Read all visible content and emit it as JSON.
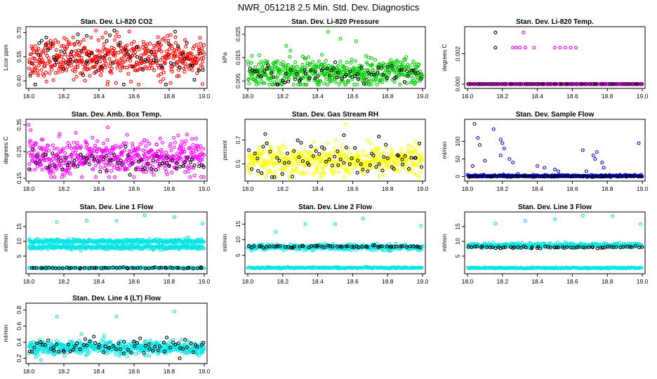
{
  "figure_title": "NWR_051218  2.5 Min. Std. Dev. Diagnostics",
  "chart_data": [
    {
      "type": "scatter",
      "title": "Stan. Dev. Li-820 CO2",
      "ylabel": "Licor ppm",
      "xlim": [
        18.0,
        19.0
      ],
      "ylim": [
        0.37,
        0.72
      ],
      "xticks": [
        "18.0",
        "18.2",
        "18.4",
        "18.6",
        "18.8",
        "19.0"
      ],
      "xtick_values": [
        18.0,
        18.2,
        18.4,
        18.6,
        18.8,
        19.0
      ],
      "yticks": [
        "0.40",
        "0.55",
        "0.70"
      ],
      "ytick_values": [
        0.4,
        0.55,
        0.7
      ],
      "series": [
        {
          "name": "all",
          "color": "#ff0000",
          "center": 0.54,
          "spread": 0.06,
          "n": 520
        },
        {
          "name": "hourly",
          "color": "#000000",
          "center": 0.54,
          "spread": 0.07,
          "n": 70
        }
      ],
      "outliers": [
        {
          "x": 18.1,
          "y": 0.67,
          "color": "#000000"
        },
        {
          "x": 18.28,
          "y": 0.69,
          "color": "#000000"
        },
        {
          "x": 18.33,
          "y": 0.68,
          "color": "#000000"
        },
        {
          "x": 18.42,
          "y": 0.67,
          "color": "#ff0000"
        },
        {
          "x": 18.99,
          "y": 0.38,
          "color": "#ff0000"
        }
      ]
    },
    {
      "type": "scatter",
      "title": "Stan. Dev. Li-820 Pressure",
      "ylabel": "kPa",
      "xlim": [
        18.0,
        19.0
      ],
      "ylim": [
        0.003,
        0.027
      ],
      "xticks": [
        "18.0",
        "18.2",
        "18.4",
        "18.6",
        "18.8",
        "19.0"
      ],
      "xtick_values": [
        18.0,
        18.2,
        18.4,
        18.6,
        18.8,
        19.0
      ],
      "yticks": [
        "0.005",
        "0.015",
        "0.025"
      ],
      "ytick_values": [
        0.005,
        0.015,
        0.025
      ],
      "series": [
        {
          "name": "all",
          "color": "#00cc00",
          "center": 0.0085,
          "spread": 0.003,
          "n": 520
        },
        {
          "name": "hourly",
          "color": "#000000",
          "center": 0.0075,
          "spread": 0.002,
          "n": 70
        }
      ],
      "outliers": [
        {
          "x": 18.46,
          "y": 0.026,
          "color": "#00cc00"
        },
        {
          "x": 18.53,
          "y": 0.023,
          "color": "#00cc00"
        },
        {
          "x": 18.62,
          "y": 0.022,
          "color": "#00cc00"
        },
        {
          "x": 18.22,
          "y": 0.02,
          "color": "#00cc00"
        },
        {
          "x": 18.5,
          "y": 0.013,
          "color": "#000000"
        }
      ]
    },
    {
      "type": "scatter",
      "title": "Stan. Dev. Li-820 Temp.",
      "ylabel": "degrees C",
      "xlim": [
        18.0,
        19.0
      ],
      "ylim": [
        -0.0001,
        0.0036
      ],
      "xticks": [
        "18.0",
        "18.2",
        "18.4",
        "18.6",
        "18.8",
        "19.0"
      ],
      "xtick_values": [
        18.0,
        18.2,
        18.4,
        18.6,
        18.8,
        19.0
      ],
      "yticks": [
        "0.000",
        "0.002"
      ],
      "ytick_values": [
        0.0,
        0.002
      ],
      "series": [
        {
          "name": "all",
          "color": "#ff00ff",
          "center": 0.0,
          "spread": 0.0,
          "n": 300
        },
        {
          "name": "hourly",
          "color": "#000000",
          "center": 0.0,
          "spread": 0.0,
          "n": 60
        }
      ],
      "outliers": [
        {
          "x": 18.16,
          "y": 0.0034,
          "color": "#000000"
        },
        {
          "x": 18.32,
          "y": 0.0034,
          "color": "#ff00ff"
        },
        {
          "x": 18.16,
          "y": 0.0024,
          "color": "#000000"
        },
        {
          "x": 18.26,
          "y": 0.0024,
          "color": "#ff00ff"
        },
        {
          "x": 18.28,
          "y": 0.0024,
          "color": "#ff00ff"
        },
        {
          "x": 18.3,
          "y": 0.0024,
          "color": "#ff00ff"
        },
        {
          "x": 18.33,
          "y": 0.0024,
          "color": "#ff00ff"
        },
        {
          "x": 18.38,
          "y": 0.0024,
          "color": "#ff00ff"
        },
        {
          "x": 18.5,
          "y": 0.0024,
          "color": "#ff00ff"
        },
        {
          "x": 18.53,
          "y": 0.0024,
          "color": "#ff00ff"
        },
        {
          "x": 18.56,
          "y": 0.0024,
          "color": "#ff00ff"
        },
        {
          "x": 18.59,
          "y": 0.0024,
          "color": "#ff00ff"
        },
        {
          "x": 18.62,
          "y": 0.0024,
          "color": "#ff00ff"
        }
      ]
    },
    {
      "type": "scatter",
      "title": "Stan. Dev. Amb. Box Temp.",
      "ylabel": "degrees C",
      "xlim": [
        18.0,
        19.0
      ],
      "ylim": [
        0.15,
        0.36
      ],
      "xticks": [
        "18.0",
        "18.2",
        "18.4",
        "18.6",
        "18.8",
        "19.0"
      ],
      "xtick_values": [
        18.0,
        18.2,
        18.4,
        18.6,
        18.8,
        19.0
      ],
      "yticks": [
        "0.15",
        "0.25",
        "0.35"
      ],
      "ytick_values": [
        0.15,
        0.25,
        0.35
      ],
      "series": [
        {
          "name": "all",
          "color": "#ff00ff",
          "center": 0.225,
          "spread": 0.035,
          "n": 520
        },
        {
          "name": "hourly",
          "color": "#000000",
          "center": 0.205,
          "spread": 0.02,
          "n": 70
        }
      ],
      "outliers": [
        {
          "x": 18.0,
          "y": 0.35,
          "color": "#ff00ff"
        },
        {
          "x": 18.01,
          "y": 0.33,
          "color": "#ff00ff"
        },
        {
          "x": 18.45,
          "y": 0.34,
          "color": "#ff00ff"
        }
      ]
    },
    {
      "type": "scatter",
      "title": "Stan. Dev. Gas Stream RH",
      "ylabel": "percent",
      "xlim": [
        18.0,
        19.0
      ],
      "ylim": [
        0.38,
        0.85
      ],
      "xticks": [
        "18.0",
        "18.2",
        "18.4",
        "18.6",
        "18.8",
        "19.0"
      ],
      "xtick_values": [
        18.0,
        18.2,
        18.4,
        18.6,
        18.8,
        19.0
      ],
      "yticks": [
        "0.5",
        "0.7"
      ],
      "ytick_values": [
        0.5,
        0.7
      ],
      "series": [
        {
          "name": "all",
          "color": "#ffff00",
          "center": 0.53,
          "spread": 0.06,
          "n": 500
        },
        {
          "name": "hourly",
          "color": "#000000",
          "center": 0.55,
          "spread": 0.07,
          "n": 70
        }
      ],
      "outliers": [
        {
          "x": 18.1,
          "y": 0.75,
          "color": "#000000"
        },
        {
          "x": 18.55,
          "y": 0.74,
          "color": "#000000"
        },
        {
          "x": 18.75,
          "y": 0.73,
          "color": "#000000"
        },
        {
          "x": 18.56,
          "y": 0.83,
          "color": "#ffff00"
        }
      ]
    },
    {
      "type": "scatter",
      "title": "Stan. Dev. Sample Flow",
      "ylabel": "ml/min",
      "xlim": [
        18.0,
        19.0
      ],
      "ylim": [
        -5,
        155
      ],
      "xticks": [
        "18.0",
        "18.2",
        "18.4",
        "18.6",
        "18.8",
        "19.0"
      ],
      "xtick_values": [
        18.0,
        18.2,
        18.4,
        18.6,
        18.8,
        19.0
      ],
      "yticks": [
        "0",
        "50",
        "100"
      ],
      "ytick_values": [
        0,
        50,
        100
      ],
      "series": [
        {
          "name": "all",
          "color": "#0000cc",
          "center": 0,
          "spread": 2,
          "n": 400
        },
        {
          "name": "hourly",
          "color": "#000000",
          "center": 0,
          "spread": 1,
          "n": 60
        }
      ],
      "outliers": [
        {
          "x": 18.04,
          "y": 150,
          "color": "#0000cc"
        },
        {
          "x": 18.15,
          "y": 135,
          "color": "#0000cc"
        },
        {
          "x": 18.06,
          "y": 110,
          "color": "#0000cc"
        },
        {
          "x": 18.07,
          "y": 90,
          "color": "#0000cc"
        },
        {
          "x": 18.19,
          "y": 105,
          "color": "#0000cc"
        },
        {
          "x": 18.2,
          "y": 95,
          "color": "#0000cc"
        },
        {
          "x": 18.21,
          "y": 80,
          "color": "#0000cc"
        },
        {
          "x": 18.19,
          "y": 60,
          "color": "#0000cc"
        },
        {
          "x": 18.24,
          "y": 50,
          "color": "#0000cc"
        },
        {
          "x": 18.26,
          "y": 40,
          "color": "#0000cc"
        },
        {
          "x": 18.1,
          "y": 45,
          "color": "#0000cc"
        },
        {
          "x": 18.03,
          "y": 30,
          "color": "#0000cc"
        },
        {
          "x": 18.4,
          "y": 30,
          "color": "#0000cc"
        },
        {
          "x": 18.44,
          "y": 25,
          "color": "#0000cc"
        },
        {
          "x": 18.5,
          "y": 20,
          "color": "#0000cc"
        },
        {
          "x": 18.52,
          "y": 15,
          "color": "#0000cc"
        },
        {
          "x": 18.66,
          "y": 75,
          "color": "#0000cc"
        },
        {
          "x": 18.74,
          "y": 70,
          "color": "#0000cc"
        },
        {
          "x": 18.77,
          "y": 40,
          "color": "#0000cc"
        },
        {
          "x": 18.78,
          "y": 25,
          "color": "#0000cc"
        },
        {
          "x": 18.73,
          "y": 50,
          "color": "#0000cc"
        },
        {
          "x": 18.72,
          "y": 60,
          "color": "#0000cc"
        },
        {
          "x": 18.98,
          "y": 95,
          "color": "#0000cc"
        },
        {
          "x": 18.68,
          "y": 15,
          "color": "#0000cc"
        }
      ]
    },
    {
      "type": "scatter",
      "title": "Stan. Dev. Line 1 Flow",
      "ylabel": "ml/min",
      "xlim": [
        18.0,
        19.0
      ],
      "ylim": [
        0,
        19
      ],
      "xticks": [
        "18.0",
        "18.2",
        "18.4",
        "18.6",
        "18.8",
        "19.0"
      ],
      "xtick_values": [
        18.0,
        18.2,
        18.4,
        18.6,
        18.8,
        19.0
      ],
      "yticks": [
        "5",
        "10",
        "15"
      ],
      "ytick_values": [
        5,
        10,
        15
      ],
      "series": [
        {
          "name": "band-upper",
          "color": "#00e5e5",
          "center": 10,
          "spread": 0.35,
          "n": 320
        },
        {
          "name": "band-lower",
          "color": "#00e5e5",
          "center": 8,
          "spread": 0.35,
          "n": 320
        },
        {
          "name": "band-base",
          "color": "#00e5e5",
          "center": 1.0,
          "spread": 0.1,
          "n": 200
        },
        {
          "name": "hourly",
          "color": "#000000",
          "center": 1.0,
          "spread": 0.1,
          "n": 55
        }
      ],
      "outliers": [
        {
          "x": 18.16,
          "y": 16.5,
          "color": "#00e5e5"
        },
        {
          "x": 18.33,
          "y": 17.0,
          "color": "#00e5e5"
        },
        {
          "x": 18.5,
          "y": 17.0,
          "color": "#00e5e5"
        },
        {
          "x": 18.66,
          "y": 18.8,
          "color": "#00e5e5"
        },
        {
          "x": 18.83,
          "y": 18.2,
          "color": "#00e5e5"
        },
        {
          "x": 18.99,
          "y": 16.0,
          "color": "#00e5e5"
        }
      ]
    },
    {
      "type": "scatter",
      "title": "Stan. Dev. Line 2 Flow",
      "ylabel": "ml/min",
      "xlim": [
        18.0,
        19.0
      ],
      "ylim": [
        0,
        18
      ],
      "xticks": [
        "18.0",
        "18.2",
        "18.4",
        "18.6",
        "18.8",
        "19.0"
      ],
      "xtick_values": [
        18.0,
        18.2,
        18.4,
        18.6,
        18.8,
        19.0
      ],
      "yticks": [
        "5",
        "10",
        "15"
      ],
      "ytick_values": [
        5,
        10,
        15
      ],
      "series": [
        {
          "name": "band-upper",
          "color": "#00e5e5",
          "center": 7.6,
          "spread": 0.45,
          "n": 360
        },
        {
          "name": "band-base",
          "color": "#00e5e5",
          "center": 1.0,
          "spread": 0.1,
          "n": 200
        },
        {
          "name": "hourly",
          "color": "#000000",
          "center": 7.8,
          "spread": 0.2,
          "n": 60
        }
      ],
      "outliers": [
        {
          "x": 18.16,
          "y": 12.5,
          "color": "#00e5e5"
        },
        {
          "x": 18.33,
          "y": 15.0,
          "color": "#00e5e5"
        },
        {
          "x": 18.5,
          "y": 15.0,
          "color": "#00e5e5"
        },
        {
          "x": 18.66,
          "y": 16.8,
          "color": "#00e5e5"
        },
        {
          "x": 18.99,
          "y": 14.5,
          "color": "#00e5e5"
        }
      ]
    },
    {
      "type": "scatter",
      "title": "Stan. Dev. Line 3 Flow",
      "ylabel": "ml/min",
      "xlim": [
        18.0,
        19.0
      ],
      "ylim": [
        0,
        19
      ],
      "xticks": [
        "18.0",
        "18.2",
        "18.4",
        "18.6",
        "18.8",
        "19.0"
      ],
      "xtick_values": [
        18.0,
        18.2,
        18.4,
        18.6,
        18.8,
        19.0
      ],
      "yticks": [
        "5",
        "10",
        "15"
      ],
      "ytick_values": [
        5,
        10,
        15
      ],
      "series": [
        {
          "name": "band-upper",
          "color": "#00e5e5",
          "center": 8.6,
          "spread": 0.4,
          "n": 360
        },
        {
          "name": "band-base",
          "color": "#00e5e5",
          "center": 1.0,
          "spread": 0.1,
          "n": 200
        },
        {
          "name": "hourly",
          "color": "#000000",
          "center": 8.0,
          "spread": 0.2,
          "n": 60
        }
      ],
      "outliers": [
        {
          "x": 18.16,
          "y": 16.0,
          "color": "#00e5e5"
        },
        {
          "x": 18.33,
          "y": 17.0,
          "color": "#00e5e5"
        },
        {
          "x": 18.5,
          "y": 17.5,
          "color": "#00e5e5"
        },
        {
          "x": 18.66,
          "y": 18.7,
          "color": "#00e5e5"
        },
        {
          "x": 18.83,
          "y": 18.5,
          "color": "#00e5e5"
        },
        {
          "x": 18.99,
          "y": 15.8,
          "color": "#00e5e5"
        }
      ]
    },
    {
      "type": "scatter",
      "title": "Stan. Dev. Line 4 (LT) Flow",
      "ylabel": "ml/min",
      "xlim": [
        18.0,
        19.0
      ],
      "ylim": [
        0.17,
        0.85
      ],
      "xticks": [
        "18.0",
        "18.2",
        "18.4",
        "18.6",
        "18.8",
        "19.0"
      ],
      "xtick_values": [
        18.0,
        18.2,
        18.4,
        18.6,
        18.8,
        19.0
      ],
      "yticks": [
        "0.2",
        "0.4",
        "0.6",
        "0.8"
      ],
      "ytick_values": [
        0.2,
        0.4,
        0.6,
        0.8
      ],
      "series": [
        {
          "name": "all",
          "color": "#00e5e5",
          "center": 0.33,
          "spread": 0.04,
          "n": 520
        },
        {
          "name": "hourly",
          "color": "#000000",
          "center": 0.34,
          "spread": 0.05,
          "n": 70
        }
      ],
      "outliers": [
        {
          "x": 18.16,
          "y": 0.72,
          "color": "#00e5e5"
        },
        {
          "x": 18.5,
          "y": 0.72,
          "color": "#00e5e5"
        },
        {
          "x": 18.83,
          "y": 0.78,
          "color": "#00e5e5"
        },
        {
          "x": 18.07,
          "y": 0.18,
          "color": "#00e5e5"
        },
        {
          "x": 18.86,
          "y": 0.2,
          "color": "#000000"
        },
        {
          "x": 18.43,
          "y": 0.48,
          "color": "#00e5e5"
        },
        {
          "x": 18.3,
          "y": 0.5,
          "color": "#00e5e5"
        }
      ]
    }
  ]
}
